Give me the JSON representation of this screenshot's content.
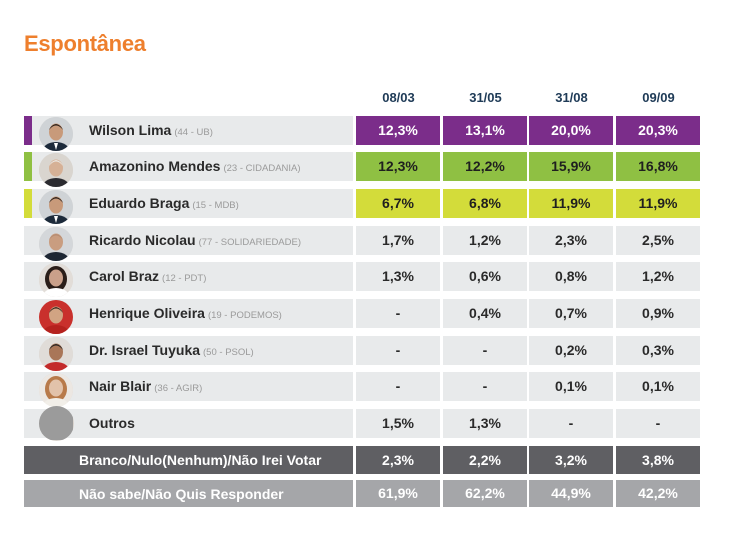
{
  "title": "Espontânea",
  "chart_data": {
    "type": "table",
    "title": "Espontânea",
    "dates": [
      "08/03",
      "31/05",
      "31/08",
      "09/09"
    ],
    "candidates": [
      {
        "name": "Wilson Lima",
        "party": "(44 - UB)",
        "values": [
          "12,3%",
          "13,1%",
          "20,0%",
          "20,3%"
        ],
        "highlight": "#7b2d8a",
        "text_color": "#ffffff",
        "avatar": "suit"
      },
      {
        "name": "Amazonino Mendes",
        "party": "(23 - CIDADANIA)",
        "values": [
          "12,3%",
          "12,2%",
          "15,9%",
          "16,8%"
        ],
        "highlight": "#8fc043",
        "text_color": "#1f1f1f",
        "avatar": "elder"
      },
      {
        "name": "Eduardo Braga",
        "party": "(15 - MDB)",
        "values": [
          "6,7%",
          "6,8%",
          "11,9%",
          "11,9%"
        ],
        "highlight": "#d3dc3a",
        "text_color": "#1f1f1f",
        "avatar": "suit"
      },
      {
        "name": "Ricardo Nicolau",
        "party": "(77 - SOLIDARIEDADE)",
        "values": [
          "1,7%",
          "1,2%",
          "2,3%",
          "2,5%"
        ],
        "highlight": null,
        "avatar": "bald"
      },
      {
        "name": "Carol Braz",
        "party": "(12 - PDT)",
        "values": [
          "1,3%",
          "0,6%",
          "0,8%",
          "1,2%"
        ],
        "highlight": null,
        "avatar": "woman-dark"
      },
      {
        "name": "Henrique Oliveira",
        "party": "(19 - PODEMOS)",
        "values": [
          "-",
          "0,4%",
          "0,7%",
          "0,9%"
        ],
        "highlight": null,
        "avatar": "red"
      },
      {
        "name": "Dr. Israel Tuyuka",
        "party": "(50 - PSOL)",
        "values": [
          "-",
          "-",
          "0,2%",
          "0,3%"
        ],
        "highlight": null,
        "avatar": "red-dark"
      },
      {
        "name": "Nair Blair",
        "party": "(36 - AGIR)",
        "values": [
          "-",
          "-",
          "0,1%",
          "0,1%"
        ],
        "highlight": null,
        "avatar": "woman-light"
      },
      {
        "name": "Outros",
        "party": "",
        "values": [
          "1,5%",
          "1,3%",
          "-",
          "-"
        ],
        "highlight": null,
        "avatar": "none"
      }
    ],
    "summary_rows": [
      {
        "label": "Branco/Nulo(Nenhum)/Não Irei Votar",
        "values": [
          "2,3%",
          "2,2%",
          "3,2%",
          "3,8%"
        ],
        "color": "#5f5f63"
      },
      {
        "label": "Não sabe/Não Quis Responder",
        "values": [
          "61,9%",
          "62,2%",
          "44,9%",
          "42,2%"
        ],
        "color": "#a5a6a9"
      }
    ]
  },
  "colors": {
    "title": "#ee7f2d",
    "row_bg": "#e8eaeb",
    "date_text": "#1f3b57"
  }
}
